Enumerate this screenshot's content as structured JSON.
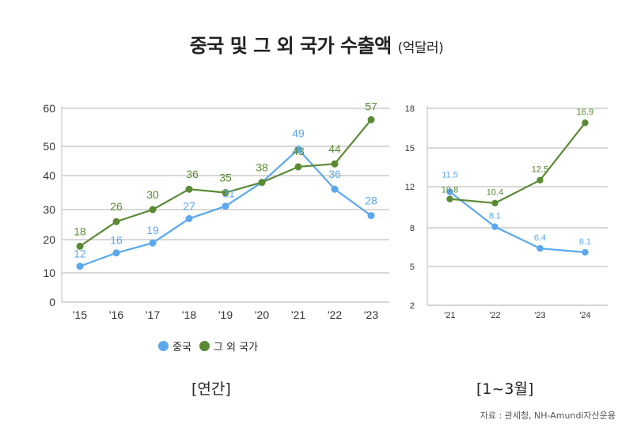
{
  "title": "중국 및 그 외 국가 수출액",
  "title_unit": "(억달러)",
  "legend": [
    {
      "label": "중국",
      "color": "#5BA8EE"
    },
    {
      "label": "그 외 국가",
      "color": "#5A8A34"
    }
  ],
  "source": "자료 : 관세청, NH-Amundi자산운용",
  "chart_data": [
    {
      "type": "line",
      "caption": "[연간]",
      "categories": [
        "'15",
        "'16",
        "'17",
        "'18",
        "'19",
        "'20",
        "'21",
        "'22",
        "'23"
      ],
      "y_ticks": [
        0,
        10,
        20,
        30,
        40,
        50,
        60
      ],
      "ylim": [
        0,
        60
      ],
      "grid": true,
      "series": [
        {
          "name": "중국",
          "color": "#5BA8EE",
          "values": [
            12,
            16,
            19,
            27,
            31,
            38,
            49,
            36,
            28
          ]
        },
        {
          "name": "그 외 국가",
          "color": "#5A8A34",
          "values": [
            18,
            26,
            30,
            36,
            35,
            38,
            43,
            44,
            57
          ]
        }
      ]
    },
    {
      "type": "line",
      "caption": "[1~3월]",
      "categories": [
        "'21",
        "'22",
        "'23",
        "'24"
      ],
      "y_ticks": [
        2,
        5,
        8,
        12,
        15,
        18
      ],
      "ylim": [
        2,
        18
      ],
      "grid": true,
      "series": [
        {
          "name": "중국",
          "color": "#5BA8EE",
          "values": [
            11.5,
            8.1,
            6.4,
            6.1
          ]
        },
        {
          "name": "그 외 국가",
          "color": "#5A8A34",
          "values": [
            10.8,
            10.4,
            12.5,
            16.9
          ]
        }
      ]
    }
  ]
}
